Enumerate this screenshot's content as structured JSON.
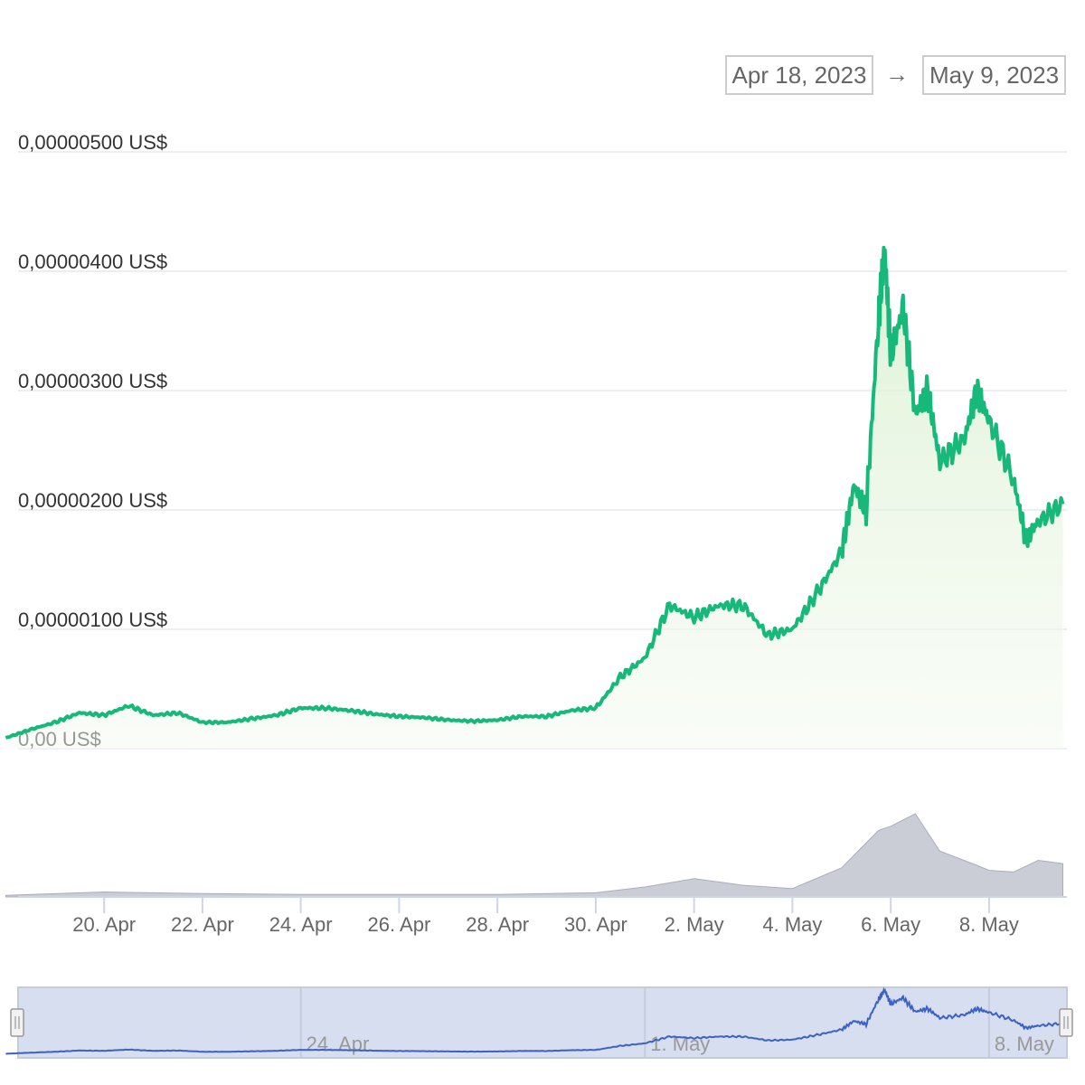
{
  "range_selector": {
    "from": "Apr 18, 2023",
    "arrow": "→",
    "to": "May 9, 2023"
  },
  "colors": {
    "price_line": "#16b979",
    "area_fill": "#d9f0d0",
    "volume": "#b8bcc8",
    "navigator_fill": "#d6deef",
    "navigator_line": "#3b62c2",
    "grid": "#eeeeee"
  },
  "chart_data": {
    "type": "line",
    "title": "",
    "xlabel": "",
    "ylabel": "",
    "x_tick_labels": [
      "20. Apr",
      "22. Apr",
      "24. Apr",
      "26. Apr",
      "28. Apr",
      "30. Apr",
      "2. May",
      "4. May",
      "6. May",
      "8. May"
    ],
    "x_range": [
      "2023-04-18",
      "2023-05-09"
    ],
    "y_tick_labels": [
      "0,00 US$",
      "0,00000100 US$",
      "0,00000200 US$",
      "0,00000300 US$",
      "0,00000400 US$",
      "0,00000500 US$"
    ],
    "ylim": [
      0,
      5e-06
    ],
    "grid": true,
    "legend": "none",
    "series": [
      {
        "name": "",
        "unit": "US$",
        "points": [
          [
            "2023-04-18",
            9e-08
          ],
          [
            "2023-04-18 12:00",
            1.6e-07
          ],
          [
            "2023-04-19",
            2.2e-07
          ],
          [
            "2023-04-19 12:00",
            3e-07
          ],
          [
            "2023-04-20",
            2.8e-07
          ],
          [
            "2023-04-20 12:00",
            3.6e-07
          ],
          [
            "2023-04-21",
            2.8e-07
          ],
          [
            "2023-04-21 12:00",
            3e-07
          ],
          [
            "2023-04-22",
            2.2e-07
          ],
          [
            "2023-04-22 12:00",
            2.2e-07
          ],
          [
            "2023-04-23",
            2.5e-07
          ],
          [
            "2023-04-23 12:00",
            2.8e-07
          ],
          [
            "2023-04-24",
            3.4e-07
          ],
          [
            "2023-04-24 12:00",
            3.4e-07
          ],
          [
            "2023-04-25",
            3.2e-07
          ],
          [
            "2023-04-25 12:00",
            2.9e-07
          ],
          [
            "2023-04-26",
            2.7e-07
          ],
          [
            "2023-04-26 12:00",
            2.6e-07
          ],
          [
            "2023-04-27",
            2.4e-07
          ],
          [
            "2023-04-27 12:00",
            2.3e-07
          ],
          [
            "2023-04-28",
            2.4e-07
          ],
          [
            "2023-04-28 12:00",
            2.7e-07
          ],
          [
            "2023-04-29",
            2.7e-07
          ],
          [
            "2023-04-29 12:00",
            3.2e-07
          ],
          [
            "2023-04-30",
            3.4e-07
          ],
          [
            "2023-04-30 12:00",
            6e-07
          ],
          [
            "2023-05-01",
            7.6e-07
          ],
          [
            "2023-05-01 12:00",
            1.2e-06
          ],
          [
            "2023-05-02",
            1.1e-06
          ],
          [
            "2023-05-02 12:00",
            1.2e-06
          ],
          [
            "2023-05-03",
            1.2e-06
          ],
          [
            "2023-05-03 12:00",
            9.5e-07
          ],
          [
            "2023-05-04",
            1e-06
          ],
          [
            "2023-05-04 12:00",
            1.3e-06
          ],
          [
            "2023-05-05",
            1.65e-06
          ],
          [
            "2023-05-05 06:00",
            2.2e-06
          ],
          [
            "2023-05-05 12:00",
            2e-06
          ],
          [
            "2023-05-05 18:00",
            3.6e-06
          ],
          [
            "2023-05-05 21:00",
            4.2e-06
          ],
          [
            "2023-05-06",
            3.3e-06
          ],
          [
            "2023-05-06 06:00",
            3.7e-06
          ],
          [
            "2023-05-06 12:00",
            2.8e-06
          ],
          [
            "2023-05-06 18:00",
            3e-06
          ],
          [
            "2023-05-07",
            2.4e-06
          ],
          [
            "2023-05-07 12:00",
            2.6e-06
          ],
          [
            "2023-05-07 18:00",
            3e-06
          ],
          [
            "2023-05-08",
            2.75e-06
          ],
          [
            "2023-05-08 12:00",
            2.25e-06
          ],
          [
            "2023-05-08 18:00",
            1.75e-06
          ],
          [
            "2023-05-09",
            1.9e-06
          ],
          [
            "2023-05-09 12:00",
            2.05e-06
          ]
        ]
      },
      {
        "name": "",
        "type": "area",
        "relative": true,
        "points": [
          [
            "2023-04-18",
            0.02
          ],
          [
            "2023-04-20",
            0.06
          ],
          [
            "2023-04-22",
            0.04
          ],
          [
            "2023-04-24",
            0.03
          ],
          [
            "2023-04-26",
            0.03
          ],
          [
            "2023-04-28",
            0.03
          ],
          [
            "2023-04-30",
            0.05
          ],
          [
            "2023-05-01",
            0.12
          ],
          [
            "2023-05-02",
            0.22
          ],
          [
            "2023-05-03",
            0.14
          ],
          [
            "2023-05-04",
            0.1
          ],
          [
            "2023-05-05",
            0.35
          ],
          [
            "2023-05-05 18:00",
            0.8
          ],
          [
            "2023-05-06",
            0.85
          ],
          [
            "2023-05-06 12:00",
            1.0
          ],
          [
            "2023-05-07",
            0.55
          ],
          [
            "2023-05-07 18:00",
            0.38
          ],
          [
            "2023-05-08",
            0.32
          ],
          [
            "2023-05-08 12:00",
            0.3
          ],
          [
            "2023-05-09",
            0.44
          ],
          [
            "2023-05-09 12:00",
            0.4
          ]
        ]
      }
    ],
    "navigator": {
      "x_tick_labels": [
        "24. Apr",
        "1. May",
        "8. May"
      ]
    }
  }
}
